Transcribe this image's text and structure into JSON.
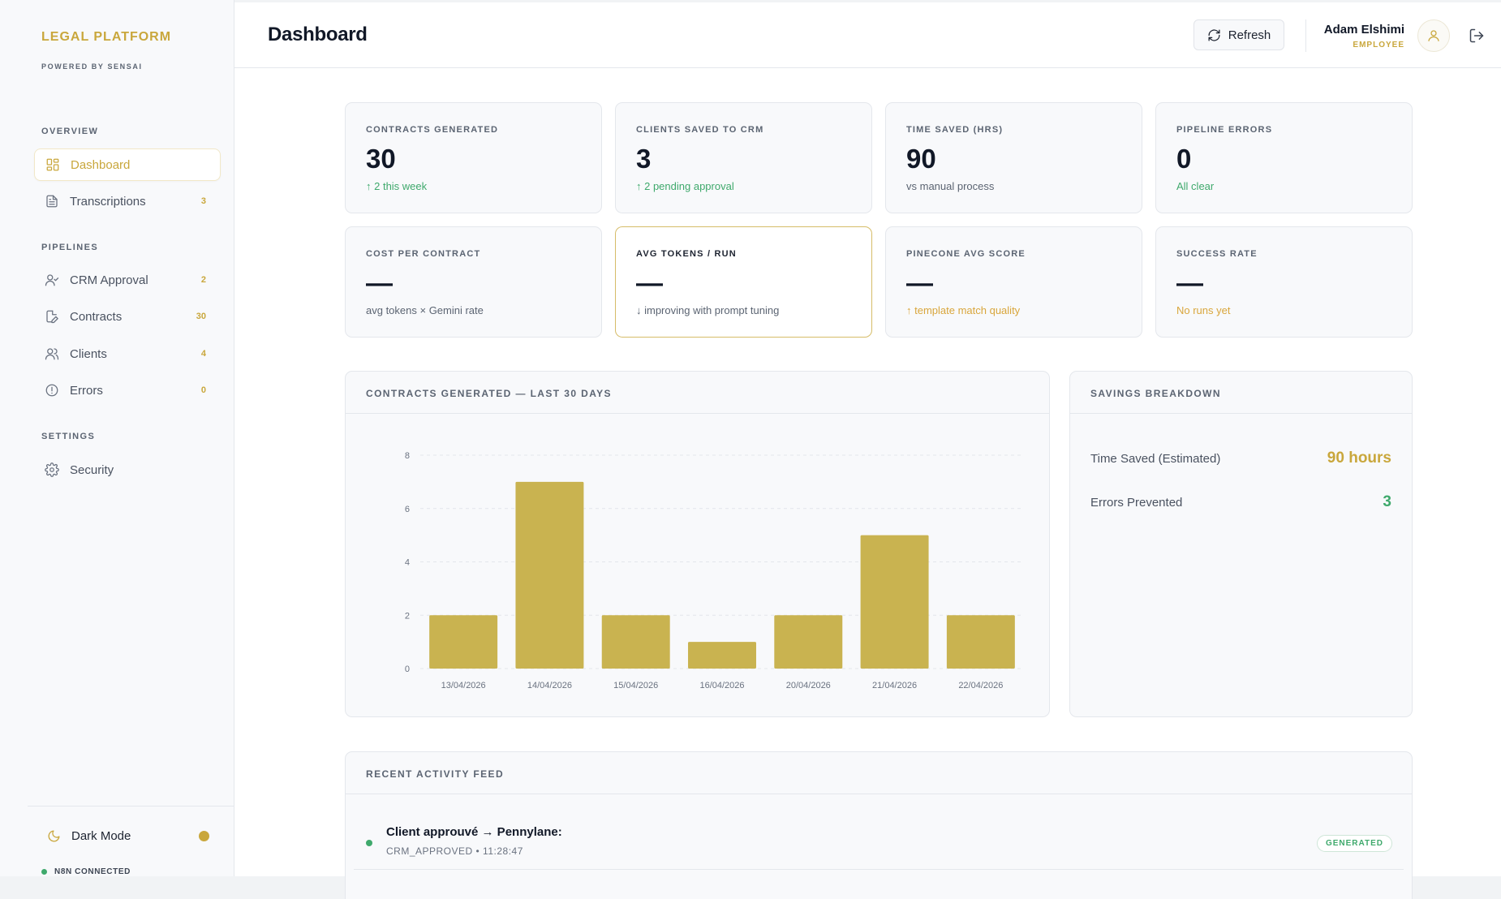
{
  "sidebar": {
    "brand": "LEGAL PLATFORM",
    "brand_sub": "POWERED BY SENSAI",
    "sections": {
      "overview": "OVERVIEW",
      "pipelines": "PIPELINES",
      "settings": "SETTINGS"
    },
    "items": [
      {
        "label": "Dashboard",
        "icon": "dashboard-icon",
        "count": ""
      },
      {
        "label": "Transcriptions",
        "icon": "document-icon",
        "count": "3"
      },
      {
        "label": "CRM Approval",
        "icon": "user-check-icon",
        "count": "2"
      },
      {
        "label": "Contracts",
        "icon": "file-edit-icon",
        "count": "30"
      },
      {
        "label": "Clients",
        "icon": "users-icon",
        "count": "4"
      },
      {
        "label": "Errors",
        "icon": "alert-circle-icon",
        "count": "0"
      },
      {
        "label": "Security",
        "icon": "gear-icon",
        "count": ""
      }
    ],
    "dark_mode_label": "Dark Mode",
    "connection_status": "N8N CONNECTED"
  },
  "header": {
    "title": "Dashboard",
    "refresh_label": "Refresh",
    "user_name": "Adam Elshimi",
    "user_role": "EMPLOYEE"
  },
  "stats": [
    {
      "label": "CONTRACTS GENERATED",
      "value": "30",
      "sub": "↑ 2 this week"
    },
    {
      "label": "CLIENTS SAVED TO CRM",
      "value": "3",
      "sub": "↑ 2 pending approval"
    },
    {
      "label": "TIME SAVED (HRS)",
      "value": "90",
      "sub": "vs manual process"
    },
    {
      "label": "PIPELINE ERRORS",
      "value": "0",
      "sub": "All clear"
    },
    {
      "label": "COST PER CONTRACT",
      "value": "—",
      "sub": "avg tokens × Gemini rate"
    },
    {
      "label": "AVG TOKENS / RUN",
      "value": "—",
      "sub": "↓ improving with prompt tuning"
    },
    {
      "label": "PINECONE AVG SCORE",
      "value": "—",
      "sub": "↑ template match quality"
    },
    {
      "label": "SUCCESS RATE",
      "value": "—",
      "sub": "No runs yet"
    }
  ],
  "colors": {
    "accent": "#c9a73c",
    "success": "#3fa96c",
    "warning": "#d9a63c"
  },
  "chart_panel": {
    "title": "CONTRACTS GENERATED — LAST 30 DAYS"
  },
  "chart_data": {
    "type": "bar",
    "categories": [
      "13/04/2026",
      "14/04/2026",
      "15/04/2026",
      "16/04/2026",
      "20/04/2026",
      "21/04/2026",
      "22/04/2026"
    ],
    "values": [
      2,
      7,
      2,
      1,
      2,
      5,
      2
    ],
    "yticks": [
      0,
      2,
      4,
      6,
      8
    ],
    "ylim": [
      0,
      8
    ],
    "grid": true,
    "bar_color": "#c9b350"
  },
  "savings": {
    "title": "SAVINGS BREAKDOWN",
    "rows": [
      {
        "label": "Time Saved (Estimated)",
        "value": "90 hours"
      },
      {
        "label": "Errors Prevented",
        "value": "3"
      }
    ]
  },
  "activity": {
    "title": "RECENT ACTIVITY FEED",
    "items": [
      {
        "title": "Client approuvé → Pennylane:",
        "meta": "CRM_APPROVED • 11:28:47",
        "badge": "GENERATED"
      }
    ]
  }
}
